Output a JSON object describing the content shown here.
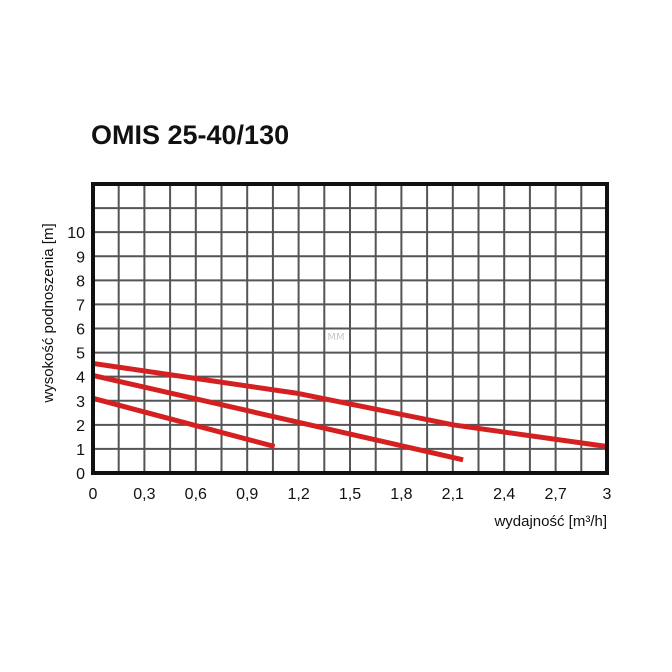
{
  "watermark": "MM",
  "chart_data": {
    "type": "line",
    "title": "OMIS 25-40/130",
    "xlabel": "wydajność [m³/h]",
    "ylabel": "wysokość podnoszenia [m]",
    "xlim": [
      0,
      3
    ],
    "ylim": [
      0,
      12
    ],
    "x_ticks": [
      "0",
      "0,3",
      "0,6",
      "0,9",
      "1,2",
      "1,5",
      "1,8",
      "2,1",
      "2,4",
      "2,7",
      "3"
    ],
    "x_tick_values": [
      0,
      0.3,
      0.6,
      0.9,
      1.2,
      1.5,
      1.8,
      2.1,
      2.4,
      2.7,
      3.0
    ],
    "y_ticks": [
      "0",
      "1",
      "2",
      "3",
      "4",
      "5",
      "6",
      "7",
      "8",
      "9",
      "10"
    ],
    "y_tick_values": [
      0,
      1,
      2,
      3,
      4,
      5,
      6,
      7,
      8,
      9,
      10
    ],
    "grid": true,
    "line_color": "#d42020",
    "series": [
      {
        "points": [
          [
            0,
            3.1
          ],
          [
            1.06,
            1.1
          ]
        ]
      },
      {
        "points": [
          [
            0,
            4.05
          ],
          [
            2.16,
            0.55
          ]
        ]
      },
      {
        "points": [
          [
            0,
            4.55
          ],
          [
            1.2,
            3.3
          ],
          [
            2.1,
            2.0
          ],
          [
            3.0,
            1.1
          ]
        ]
      }
    ]
  }
}
